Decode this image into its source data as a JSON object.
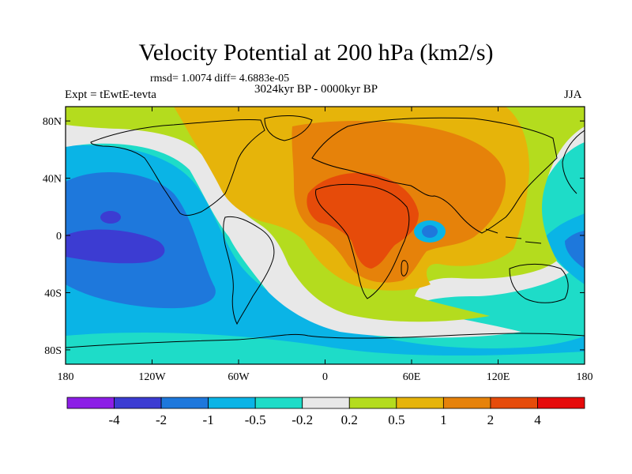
{
  "figure": {
    "title": "Velocity Potential at 200 hPa (km2/s)",
    "stats": "rmsd= 1.0074 diff= 4.6883e-05",
    "experiment": "Expt = tEwtE-tevta",
    "period": "3024kyr BP - 0000kyr BP",
    "season": "JJA"
  },
  "map": {
    "lon_ticks": [
      "180",
      "120W",
      "60W",
      "0",
      "60E",
      "120E",
      "180"
    ],
    "lat_ticks": [
      "80N",
      "40N",
      "0",
      "40S",
      "80S"
    ],
    "lon_tick_values": [
      -180,
      -120,
      -60,
      0,
      60,
      120,
      180
    ],
    "lat_tick_values": [
      80,
      40,
      0,
      -40,
      -80
    ],
    "lon_range": [
      -180,
      180
    ],
    "lat_range": [
      -90,
      90
    ],
    "projection": "cylindrical equidistant"
  },
  "colorbar": {
    "labels": [
      "-4",
      "-2",
      "-1",
      "-0.5",
      "-0.2",
      "0.2",
      "0.5",
      "1",
      "2",
      "4"
    ],
    "colors": [
      "#8c1ee6",
      "#3c3cd2",
      "#1e78dc",
      "#0ab4e6",
      "#1edcc8",
      "#e8e8e8",
      "#b4dc1e",
      "#e6b40a",
      "#e6820a",
      "#e64b0a",
      "#e60a0a"
    ]
  },
  "colors": {
    "land_outline": "#000000",
    "frame": "#000000"
  }
}
